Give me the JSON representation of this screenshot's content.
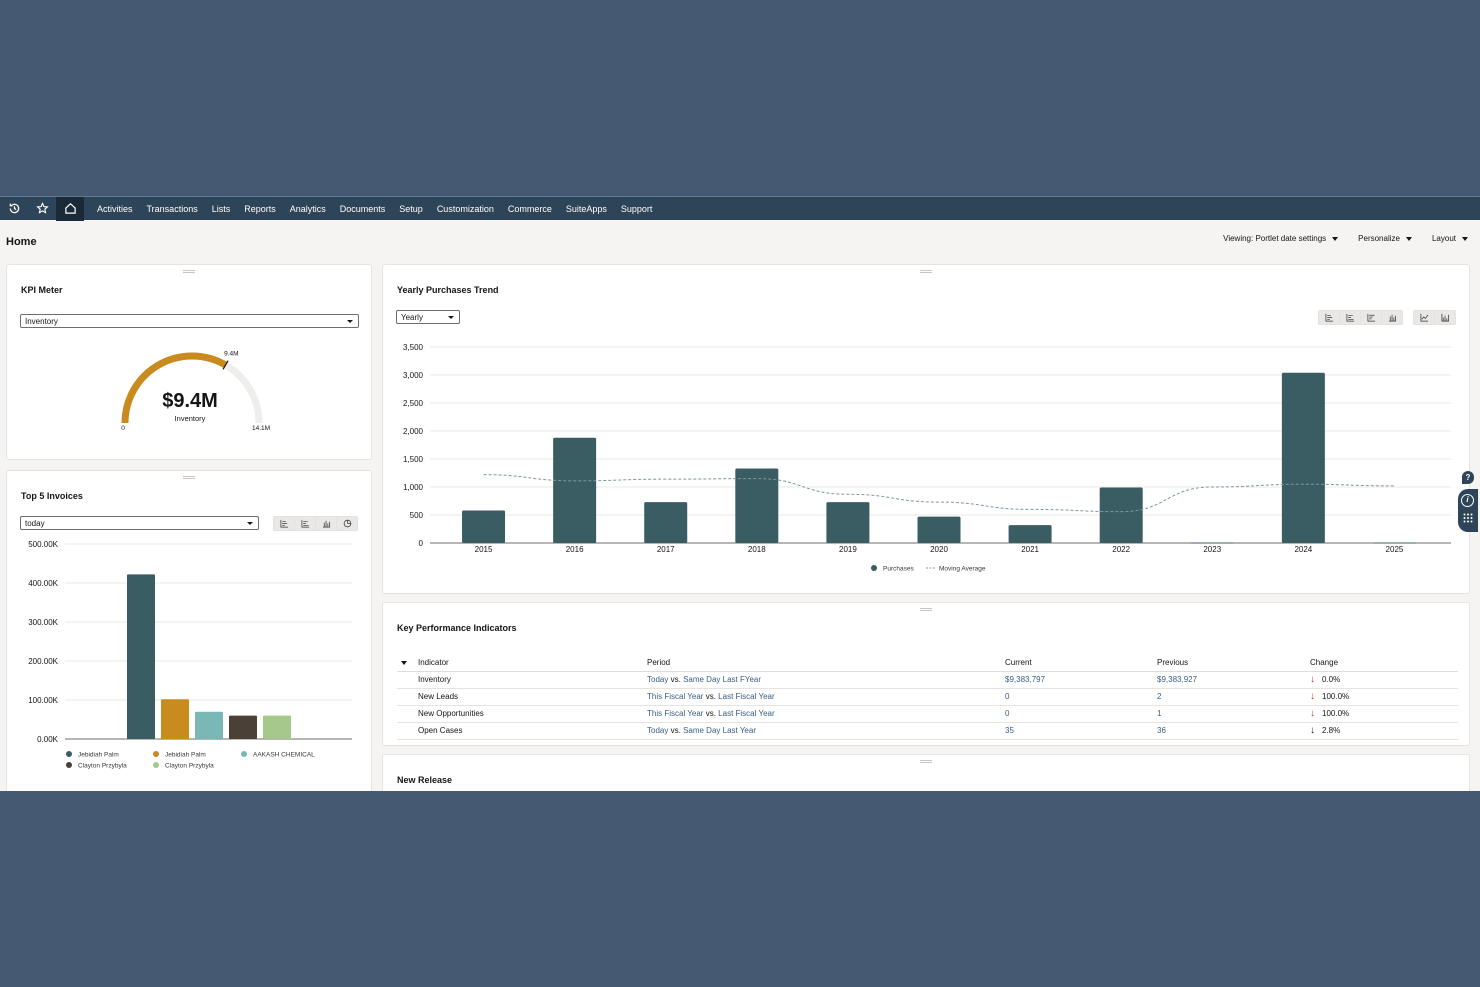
{
  "nav": {
    "items": [
      "Activities",
      "Transactions",
      "Lists",
      "Reports",
      "Analytics",
      "Documents",
      "Setup",
      "Customization",
      "Commerce",
      "SuiteApps",
      "Support"
    ],
    "icons": [
      "recent-icon",
      "star-icon",
      "home-icon"
    ]
  },
  "page": {
    "title": "Home",
    "viewing": "Viewing: Portlet date settings",
    "personalize": "Personalize",
    "layout": "Layout"
  },
  "kpi_meter": {
    "title": "KPI Meter",
    "select": "Inventory",
    "value": "$9.4M",
    "label": "Inventory",
    "min": "0",
    "max": "14.1M",
    "marker": "9.4M",
    "gauge_fraction": 0.667,
    "color": "#c98a1e"
  },
  "top_invoices": {
    "title": "Top 5 Invoices",
    "select": "today",
    "chart_data": {
      "type": "bar",
      "yticks": [
        "500.00K",
        "400.00K",
        "300.00K",
        "200.00K",
        "100.00K",
        "0.00K"
      ],
      "ylim": [
        0,
        500000
      ],
      "series": [
        {
          "name": "Jebidiah Palm",
          "value": 422000,
          "color": "#3a5c63"
        },
        {
          "name": "Jebidiah Palm",
          "value": 102000,
          "color": "#c98a1e"
        },
        {
          "name": "AAKASH CHEMICAL",
          "value": 70000,
          "color": "#7ab8b8"
        },
        {
          "name": "Clayton Przybyla",
          "value": 60000,
          "color": "#4a4038"
        },
        {
          "name": "Clayton Przybyla",
          "value": 60000,
          "color": "#a6c88a"
        }
      ],
      "legend_position": "bottom"
    }
  },
  "yearly_trend": {
    "title": "Yearly Purchases Trend",
    "select": "Yearly",
    "chart_data": {
      "type": "bar",
      "categories": [
        "2015",
        "2016",
        "2017",
        "2018",
        "2019",
        "2020",
        "2021",
        "2022",
        "2023",
        "2024",
        "2025"
      ],
      "series": [
        {
          "name": "Purchases",
          "values": [
            580,
            1880,
            730,
            1330,
            730,
            470,
            320,
            990,
            10,
            3040,
            10
          ],
          "color": "#3a5c63"
        },
        {
          "name": "Moving Average",
          "values": [
            1220,
            1110,
            1140,
            1150,
            870,
            730,
            600,
            560,
            1000,
            1050,
            1020
          ],
          "color": "#7a9aa0"
        }
      ],
      "yticks": [
        "3,500",
        "3,000",
        "2,500",
        "2,000",
        "1,500",
        "1,000",
        "500",
        "0"
      ],
      "ylim": [
        0,
        3500
      ],
      "legend_position": "bottom"
    }
  },
  "kpis": {
    "title": "Key Performance Indicators",
    "headers": [
      "Indicator",
      "Period",
      "Current",
      "Previous",
      "Change"
    ],
    "rows": [
      {
        "indicator": "Inventory",
        "p1": "Today",
        "vs": "vs.",
        "p2": "Same Day Last FYear",
        "current": "$9,383,797",
        "previous": "$9,383,927",
        "change": "0.0%"
      },
      {
        "indicator": "New Leads",
        "p1": "This Fiscal Year",
        "vs": "vs.",
        "p2": "Last Fiscal Year",
        "current": "0",
        "previous": "2",
        "change": "100.0%"
      },
      {
        "indicator": "New Opportunities",
        "p1": "This Fiscal Year",
        "vs": "vs.",
        "p2": "Last Fiscal Year",
        "current": "0",
        "previous": "1",
        "change": "100.0%"
      },
      {
        "indicator": "Open Cases",
        "p1": "Today",
        "vs": "vs.",
        "p2": "Same Day Last Year",
        "current": "35",
        "previous": "36",
        "change": "2.8%"
      }
    ]
  },
  "new_release": {
    "title": "New Release"
  },
  "side": {
    "help": "?",
    "info": "i"
  }
}
